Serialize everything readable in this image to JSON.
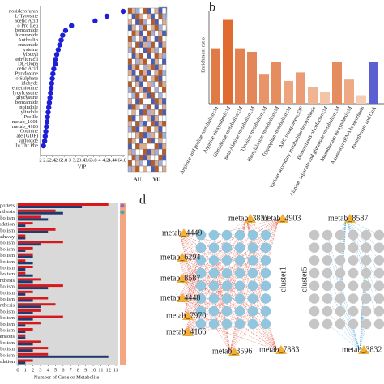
{
  "panel_labels": [
    "b",
    "d"
  ],
  "chart_data": [
    {
      "type": "dot",
      "x_label": "VIP",
      "color": "#1f1fd6",
      "categories": [
        "nosiderofuran",
        "L-Tyrosine",
        "acetic Acid",
        "o Pro Leu",
        "benzamide",
        "lucuronide",
        "Anthralin",
        "enzamide",
        "ysteine",
        "ylbutyl",
        "ethyluracil",
        "DL-Dopa",
        "cetic Acid",
        "Pyridoxine",
        "o Sulphate",
        "idehyde",
        "emethionine",
        "lycylcystine",
        "glycystine",
        "benzamide",
        "noindole",
        "ylindole",
        "Pro Ile",
        "metab_1001",
        "metab_4186",
        "Cotinine",
        "ate (GDP)",
        "sulfoxide",
        "llu Thr Phe"
      ],
      "values": [
        4.8,
        4.25,
        3.85,
        3.05,
        2.85,
        2.75,
        2.7,
        2.65,
        2.6,
        2.55,
        2.5,
        2.5,
        2.45,
        2.42,
        2.4,
        2.38,
        2.36,
        2.34,
        2.32,
        2.3,
        2.28,
        2.26,
        2.24,
        2.22,
        2.2,
        2.18,
        2.16,
        2.14,
        2.1
      ],
      "xlim": [
        2,
        4.8
      ],
      "xticks": [
        2,
        2.2,
        2.4,
        2.6,
        2.8,
        3,
        3.2,
        3.4,
        3.6,
        3.8,
        4,
        4.2,
        4.4,
        4.6,
        4.8
      ]
    },
    {
      "type": "heatmap",
      "groups": [
        "AU",
        "YU"
      ],
      "zlim": [
        -1,
        1
      ],
      "colors": [
        "#4a5cb3",
        "#ffffff",
        "#b85a23"
      ],
      "values": [
        [
          1,
          0.5,
          -0.5,
          0,
          1,
          -1,
          0,
          0.5,
          -1,
          0
        ],
        [
          0,
          -1,
          1,
          0.5,
          0,
          0.5,
          -1,
          0,
          1,
          -0.5
        ],
        [
          0.5,
          0,
          -1,
          1,
          -0.5,
          0,
          1,
          -1,
          0,
          0.5
        ],
        [
          -1,
          0.5,
          0,
          -0.5,
          1,
          0,
          0.5,
          1,
          -0.5,
          0
        ],
        [
          0,
          1,
          0.5,
          -1,
          0,
          1,
          -0.5,
          0,
          0.5,
          -1
        ],
        [
          1,
          -0.5,
          0,
          0.5,
          -1,
          0.5,
          0,
          -1,
          1,
          0
        ],
        [
          0.5,
          0,
          1,
          -1,
          0.5,
          -0.5,
          1,
          0,
          -1,
          0.5
        ],
        [
          -0.5,
          1,
          0,
          0,
          -1,
          1,
          0.5,
          -0.5,
          0,
          1
        ],
        [
          0,
          -1,
          0.5,
          1,
          0,
          -1,
          0,
          1,
          0.5,
          -0.5
        ],
        [
          1,
          0,
          -0.5,
          0.5,
          1,
          0,
          -1,
          0.5,
          0,
          -1
        ],
        [
          -1,
          0.5,
          1,
          0,
          -0.5,
          0.5,
          1,
          -1,
          0.5,
          0
        ],
        [
          0.5,
          -1,
          0,
          1,
          0.5,
          -1,
          0,
          0.5,
          1,
          -0.5
        ],
        [
          0,
          0.5,
          -1,
          -0.5,
          1,
          0,
          0.5,
          1,
          -1,
          0
        ],
        [
          1,
          0,
          0.5,
          -1,
          0,
          0.5,
          -0.5,
          0,
          1,
          0.5
        ],
        [
          -0.5,
          1,
          0,
          0.5,
          -1,
          1,
          0,
          -0.5,
          0,
          1
        ],
        [
          0,
          -0.5,
          1,
          0,
          0.5,
          -1,
          1,
          0,
          -0.5,
          0
        ],
        [
          0.5,
          0,
          -1,
          1,
          0,
          0,
          -1,
          1,
          0.5,
          -1
        ],
        [
          -1,
          1,
          0.5,
          0,
          -0.5,
          1,
          0,
          -1,
          0,
          0.5
        ],
        [
          0,
          0.5,
          0,
          -1,
          1,
          -0.5,
          0.5,
          0,
          1,
          -1
        ],
        [
          1,
          -1,
          0,
          0.5,
          0,
          0.5,
          -1,
          0.5,
          0,
          0
        ],
        [
          0.5,
          0,
          1,
          -0.5,
          -1,
          0,
          1,
          -1,
          0.5,
          1
        ],
        [
          -0.5,
          1,
          -1,
          0,
          0.5,
          1,
          0,
          0.5,
          -1,
          0
        ],
        [
          0,
          0,
          0.5,
          1,
          -1,
          -0.5,
          0.5,
          0,
          1,
          -0.5
        ],
        [
          1,
          0.5,
          0,
          -1,
          0,
          1,
          -1,
          0,
          0.5,
          0
        ],
        [
          -1,
          0,
          1,
          0.5,
          0.5,
          0,
          0,
          1,
          -1,
          0.5
        ],
        [
          0.5,
          -0.5,
          0,
          0,
          1,
          -1,
          0.5,
          -0.5,
          0,
          1
        ],
        [
          0,
          1,
          -0.5,
          1,
          -1,
          0.5,
          0,
          0,
          1,
          -1
        ],
        [
          1,
          0,
          0.5,
          -0.5,
          0,
          -1,
          1,
          0.5,
          -0.5,
          0
        ],
        [
          -0.5,
          0.5,
          1,
          0,
          0.5,
          0,
          -1,
          1,
          0,
          0.5
        ]
      ]
    },
    {
      "type": "bar",
      "y_label": "Enrichment ratio",
      "categories": [
        "Arginine and proline metabolism;M",
        "Arginine biosynthesis;M",
        "Glutathione metabolism;M",
        "beta-Alanine metabolism;M",
        "Tyrosine metabolism;M",
        "Phenylalanine metabolism;M",
        "Tryptophan metabolism;M",
        "ABC transporters;EIP",
        "Various secondary metabolites biosynthesis",
        "Biosynthesis of cofactors;M",
        "Alanine, aspartate and glutamate metabolism;M",
        "Monobactam biosynthesis;M",
        "Aminoacyl-tRNA biosynthesis",
        "Pantothenate and CoA"
      ],
      "values": [
        7.8,
        11.8,
        7.8,
        7.3,
        4.2,
        5.9,
        3.2,
        4.4,
        2.3,
        1.6,
        5.9,
        3.4,
        1.2,
        5.9
      ],
      "colors": [
        "#e07b45",
        "#e06a30",
        "#e38250",
        "#e3875a",
        "#e89468",
        "#e68d60",
        "#eda57f",
        "#eb9c74",
        "#f0b493",
        "#f3c4a8",
        "#e68d60",
        "#eeaa85",
        "#f5cdb5",
        "#5b5fd0"
      ],
      "ylim": [
        0,
        13
      ]
    },
    {
      "type": "hbar",
      "x_label": "Number of Gene or Metabolite",
      "categories": [
        "BC transporters",
        "A biosynthesis",
        "pid metabolism",
        "ine degradation",
        "pid metabolism",
        "lphate pathway",
        "ine metabolism",
        "ose metabolism",
        "ose metabolism",
        "ine metabolism",
        "ine metabolism",
        "pid metabolism",
        "ine biosynthesis",
        "ine metabolism",
        "ine metabolism",
        "ine metabolism",
        "A biosynthesis",
        "ine metabolism",
        "ine metabolism",
        "ine metabolism",
        "ine metabolism",
        "interconversions",
        "ine metabolism",
        "ine metabolism",
        "ine metabolism",
        "ine degradation"
      ],
      "series": [
        {
          "color": "#d7191c",
          "values": [
            12,
            5,
            3,
            2,
            5,
            1,
            6,
            2,
            2,
            1,
            2,
            1,
            3,
            6,
            2,
            4,
            5,
            3,
            6,
            3,
            2,
            1,
            3,
            4,
            4,
            2
          ]
        },
        {
          "color": "#1f3a6e",
          "values": [
            8.5,
            6,
            4,
            1,
            4,
            1,
            3,
            1,
            2,
            2,
            1,
            2,
            2,
            4,
            1,
            2,
            3,
            2,
            2,
            1,
            1,
            1,
            2,
            2,
            12,
            1
          ]
        }
      ],
      "xlim": [
        0,
        13
      ],
      "xticks": [
        0,
        1,
        2,
        3,
        4,
        5,
        6,
        7,
        8,
        9,
        10,
        11,
        12,
        13
      ]
    }
  ],
  "network": {
    "labels": [
      "metab_4449",
      "metab_3832",
      "metab_4903",
      "metab_6294",
      "metab_8587",
      "metab_4448",
      "metab_7970",
      "metab_4166",
      "metab_3596",
      "metab_7883",
      "metab_8587",
      "metab_3832"
    ],
    "clusters": [
      "cluster1",
      "cluster5"
    ]
  }
}
